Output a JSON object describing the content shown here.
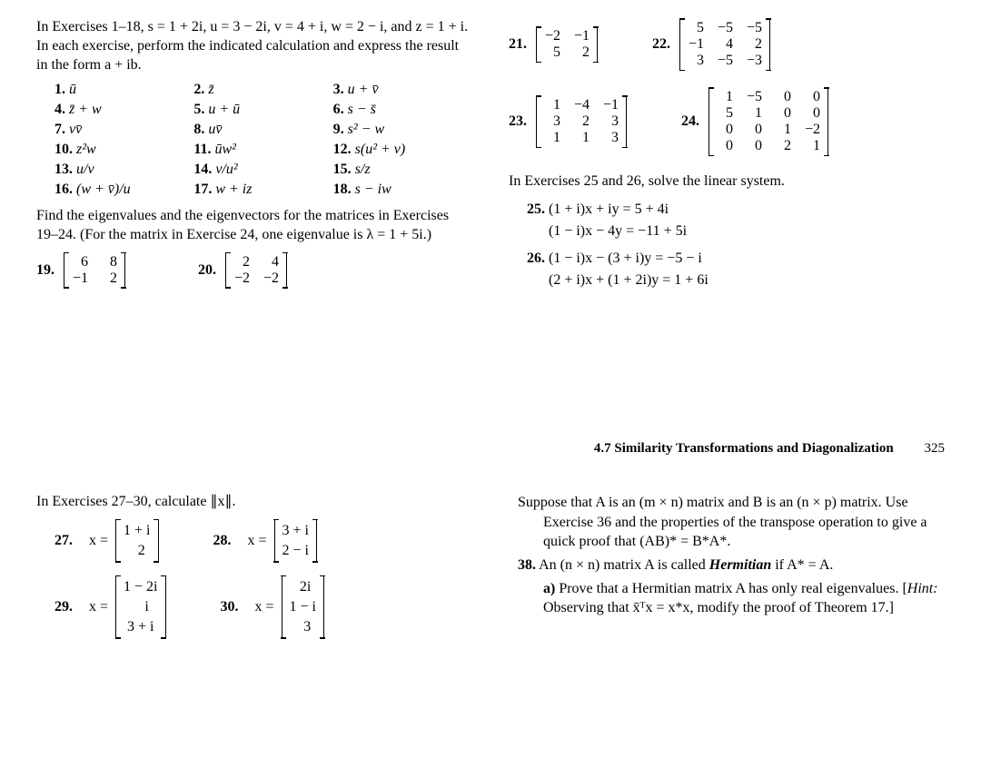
{
  "top_instructions": "In Exercises 1–18, s = 1 + 2i, u = 3 − 2i, v = 4 + i, w = 2 − i, and z = 1 + i. In each exercise, perform the indicated calculation and express the result in the form a + ib.",
  "ex1_18": [
    {
      "n": "1.",
      "t": "ū"
    },
    {
      "n": "2.",
      "t": "z̄"
    },
    {
      "n": "3.",
      "t": "u + v̄"
    },
    {
      "n": "4.",
      "t": "z̄ + w"
    },
    {
      "n": "5.",
      "t": "u + ū"
    },
    {
      "n": "6.",
      "t": "s − s̄"
    },
    {
      "n": "7.",
      "t": "vv̄"
    },
    {
      "n": "8.",
      "t": "uv̄"
    },
    {
      "n": "9.",
      "t": "s² − w"
    },
    {
      "n": "10.",
      "t": "z²w"
    },
    {
      "n": "11.",
      "t": "ūw²"
    },
    {
      "n": "12.",
      "t": "s(u² + v)"
    },
    {
      "n": "13.",
      "t": "u/v"
    },
    {
      "n": "14.",
      "t": "v/u²"
    },
    {
      "n": "15.",
      "t": "s/z"
    },
    {
      "n": "16.",
      "t": "(w + v̄)/u"
    },
    {
      "n": "17.",
      "t": "w + iz"
    },
    {
      "n": "18.",
      "t": "s − iw"
    }
  ],
  "eigen_instructions": "Find the eigenvalues and the eigenvectors for the matrices in Exercises 19–24. (For the matrix in Exercise 24, one eigenvalue is λ = 1 + 5i.)",
  "m19": {
    "n": "19.",
    "rows": [
      [
        "6",
        "8"
      ],
      [
        "−1",
        "2"
      ]
    ]
  },
  "m20": {
    "n": "20.",
    "rows": [
      [
        "2",
        "4"
      ],
      [
        "−2",
        "−2"
      ]
    ]
  },
  "m21": {
    "n": "21.",
    "rows": [
      [
        "−2",
        "−1"
      ],
      [
        "5",
        "2"
      ]
    ]
  },
  "m22": {
    "n": "22.",
    "rows": [
      [
        "5",
        "−5",
        "−5"
      ],
      [
        "−1",
        "4",
        "2"
      ],
      [
        "3",
        "−5",
        "−3"
      ]
    ]
  },
  "m23": {
    "n": "23.",
    "rows": [
      [
        "1",
        "−4",
        "−1"
      ],
      [
        "3",
        "2",
        "3"
      ],
      [
        "1",
        "1",
        "3"
      ]
    ]
  },
  "m24": {
    "n": "24.",
    "rows": [
      [
        "1",
        "−5",
        "0",
        "0"
      ],
      [
        "5",
        "1",
        "0",
        "0"
      ],
      [
        "0",
        "0",
        "1",
        "−2"
      ],
      [
        "0",
        "0",
        "2",
        "1"
      ]
    ]
  },
  "solve_instructions": "In Exercises 25 and 26, solve the linear system.",
  "eq25": {
    "n": "25.",
    "l1": "(1 + i)x + iy =   5 + 4i",
    "l2": "(1 − i)x − 4y = −11 + 5i"
  },
  "eq26": {
    "n": "26.",
    "l1": "(1 − i)x −  (3 + i)y = −5 −  i",
    "l2": "(2 + i)x + (1 + 2i)y =   1 + 6i"
  },
  "section_title": "4.7 Similarity Transformations and Diagonalization",
  "page_number": "325",
  "norm_instructions": "In Exercises 27–30, calculate ∥x∥.",
  "v27": {
    "n": "27.",
    "pre": "x =",
    "rows": [
      [
        "1 + i"
      ],
      [
        "2"
      ]
    ]
  },
  "v28": {
    "n": "28.",
    "pre": "x =",
    "rows": [
      [
        "3 + i"
      ],
      [
        "2 − i"
      ]
    ]
  },
  "v29": {
    "n": "29.",
    "pre": "x =",
    "rows": [
      [
        "1 − 2i"
      ],
      [
        "i"
      ],
      [
        "3 + i"
      ]
    ]
  },
  "v30": {
    "n": "30.",
    "pre": "x =",
    "rows": [
      [
        "2i"
      ],
      [
        "1 − i"
      ],
      [
        "3"
      ]
    ]
  },
  "p37": "Suppose that A is an (m × n) matrix and B is an (n × p) matrix. Use Exercise 36 and the properties of the transpose operation to give a quick proof that (AB)* = B*A*.",
  "p38_lead": "An (n × n) matrix A is called ",
  "p38_term": "Hermitian",
  "p38_tail": " if A* = A.",
  "p38a_n": "a)",
  "p38a": "Prove that a Hermitian matrix A has only real eigenvalues. [",
  "p38a_hint": "Hint:",
  "p38a_tail": " Observing that x̄ᵀx = x*x, modify the proof of Theorem 17.]",
  "n38": "38."
}
